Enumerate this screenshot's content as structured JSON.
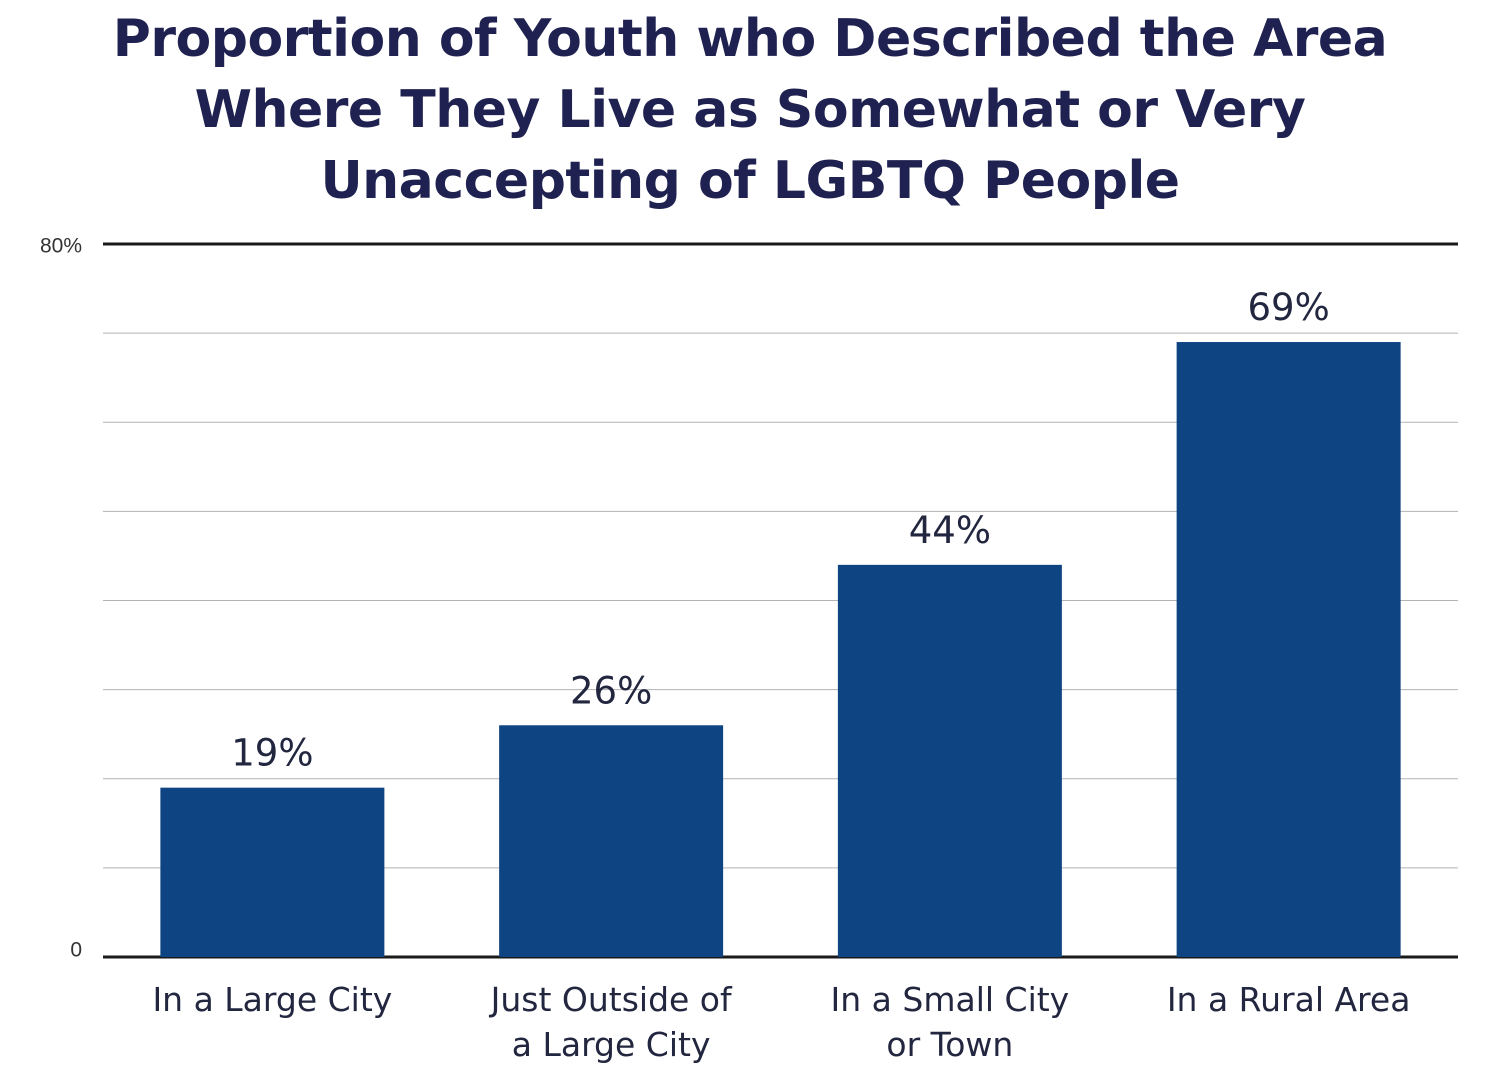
{
  "chart_data": {
    "type": "bar",
    "title_lines": [
      "Proportion of Youth who Described the Area",
      "Where They Live as Somewhat or Very",
      "Unaccepting of LGBTQ People"
    ],
    "categories": [
      [
        "In a Large City"
      ],
      [
        "Just Outside of",
        "a Large City"
      ],
      [
        "In a Small City",
        "or Town"
      ],
      [
        "In a Rural Area"
      ]
    ],
    "values": [
      19,
      26,
      44,
      69
    ],
    "data_labels": [
      "19%",
      "26%",
      "44%",
      "69%"
    ],
    "ytick_labels": {
      "min": "0",
      "max": "80%"
    },
    "ylim": [
      0,
      80
    ],
    "gridline_step": 10,
    "grid": true,
    "legend": "none",
    "bar_color": "#0f4482",
    "text_color": "#1f2150"
  }
}
